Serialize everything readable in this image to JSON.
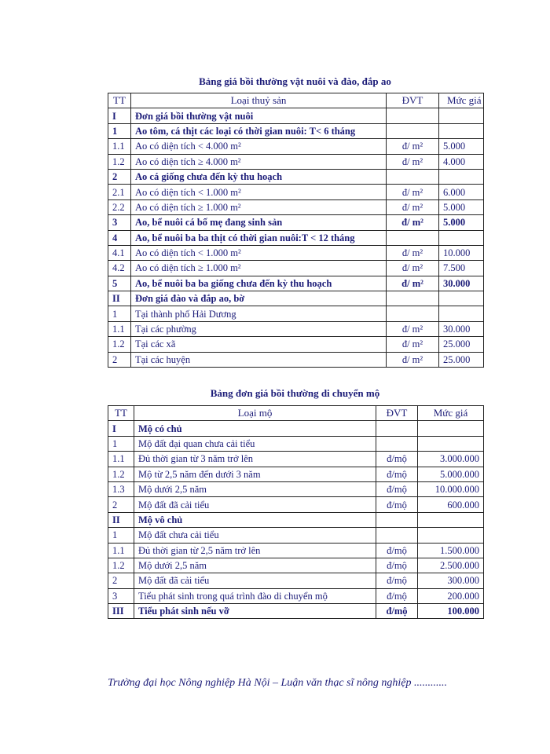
{
  "table1": {
    "title": "Bảng giá bồi thường vật nuôi và đào, đắp ao",
    "headers": [
      "TT",
      "Loại thuỷ sản",
      "ĐVT",
      "Mức giá"
    ],
    "rows": [
      {
        "tt": "I",
        "name": "Đơn giá bồi thường vật nuôi",
        "unit": "",
        "price": "",
        "bold": true
      },
      {
        "tt": "1",
        "name": "Ao tôm, cá thịt các loại có thời gian nuôi: T< 6 tháng",
        "unit": "",
        "price": "",
        "bold": true
      },
      {
        "tt": "1.1",
        "name": "Ao có diện tích < 4.000 m²",
        "unit": "đ/ m²",
        "price": "5.000",
        "bold": false
      },
      {
        "tt": "1.2",
        "name": "Ao có diện tích ≥ 4.000 m²",
        "unit": "đ/ m²",
        "price": "4.000",
        "bold": false
      },
      {
        "tt": "2",
        "name": "Ao cá giống chưa đến kỳ thu hoạch",
        "unit": "",
        "price": "",
        "bold": true
      },
      {
        "tt": "2.1",
        "name": "Ao có diện tích < 1.000 m²",
        "unit": "đ/ m²",
        "price": "6.000",
        "bold": false
      },
      {
        "tt": "2.2",
        "name": "Ao có diện tích ≥ 1.000 m²",
        "unit": "đ/ m²",
        "price": "5.000",
        "bold": false
      },
      {
        "tt": "3",
        "name": "Ao, bể nuôi cá bố mẹ đang sinh sản",
        "unit": "đ/ m²",
        "price": "5.000",
        "bold": true
      },
      {
        "tt": "4",
        "name": "Ao, bể nuôi ba ba thịt có thời gian nuôi:T < 12 tháng",
        "unit": "",
        "price": "",
        "bold": true
      },
      {
        "tt": "4.1",
        "name": "Ao có diện tích < 1.000 m²",
        "unit": "đ/ m²",
        "price": "10.000",
        "bold": false
      },
      {
        "tt": "4.2",
        "name": "Ao có diện tích ≥ 1.000 m²",
        "unit": "đ/ m²",
        "price": "7.500",
        "bold": false
      },
      {
        "tt": "5",
        "name": "Ao, bể nuôi ba ba giống chưa đến kỳ thu hoạch",
        "unit": "đ/ m²",
        "price": "30.000",
        "bold": true
      },
      {
        "tt": "II",
        "name": "Đơn giá đào và đắp ao, bờ",
        "unit": "",
        "price": "",
        "bold": true
      },
      {
        "tt": "1",
        "name": "Tại thành phố Hải Dương",
        "unit": "",
        "price": "",
        "bold": false
      },
      {
        "tt": "1.1",
        "name": "Tại các phường",
        "unit": "đ/ m²",
        "price": "30.000",
        "bold": false
      },
      {
        "tt": "1.2",
        "name": "Tại các xã",
        "unit": "đ/ m²",
        "price": "25.000",
        "bold": false
      },
      {
        "tt": "2",
        "name": "Tại các huyện",
        "unit": "đ/ m²",
        "price": "25.000",
        "bold": false
      }
    ]
  },
  "table2": {
    "title": "Bảng đơn giá bồi thường di chuyển mộ",
    "headers": [
      "TT",
      "Loại mộ",
      "ĐVT",
      "Mức giá"
    ],
    "rows": [
      {
        "tt": "I",
        "name": "Mộ có chủ",
        "unit": "",
        "price": "",
        "bold": true
      },
      {
        "tt": "1",
        "name": "Mộ đất đại quan chưa cải tiểu",
        "unit": "",
        "price": "",
        "bold": false
      },
      {
        "tt": "1.1",
        "name": "Đủ thời  gian từ 3 năm trở lên",
        "unit": "đ/mộ",
        "price": "3.000.000",
        "bold": false
      },
      {
        "tt": "1.2",
        "name": "Mộ từ 2,5 năm đến dưới 3 năm",
        "unit": "đ/mộ",
        "price": "5.000.000",
        "bold": false
      },
      {
        "tt": "1.3",
        "name": "Mộ dưới 2,5 năm",
        "unit": "đ/mộ",
        "price": "10.000.000",
        "bold": false
      },
      {
        "tt": "2",
        "name": "Mộ đất đã cải tiểu",
        "unit": "đ/mộ",
        "price": "600.000",
        "bold": false
      },
      {
        "tt": "II",
        "name": "Mộ vô chủ",
        "unit": "",
        "price": "",
        "bold": true
      },
      {
        "tt": "1",
        "name": "Mộ đất chưa cải tiểu",
        "unit": "",
        "price": "",
        "bold": false
      },
      {
        "tt": "1.1",
        "name": "Đủ thời gian từ 2,5 năm trở lên",
        "unit": "đ/mộ",
        "price": "1.500.000",
        "bold": false
      },
      {
        "tt": "1.2",
        "name": "Mộ dưới 2,5 năm",
        "unit": "đ/mộ",
        "price": "2.500.000",
        "bold": false
      },
      {
        "tt": "2",
        "name": "Mộ đất đã cải tiểu",
        "unit": "đ/mộ",
        "price": "300.000",
        "bold": false
      },
      {
        "tt": "3",
        "name": "Tiểu phát sinh trong quá trình đào di chuyển mộ",
        "unit": "đ/mộ",
        "price": "200.000",
        "bold": false
      },
      {
        "tt": "III",
        "name": "Tiểu phát sinh nếu vỡ",
        "unit": "đ/mộ",
        "price": "100.000",
        "bold": true
      }
    ]
  },
  "footer": "Trường đại học Nông nghiệp Hà Nội – Luận văn thạc sĩ  nông nghiệp ............",
  "colors": {
    "text": "#1c1c78",
    "border": "#222222"
  }
}
